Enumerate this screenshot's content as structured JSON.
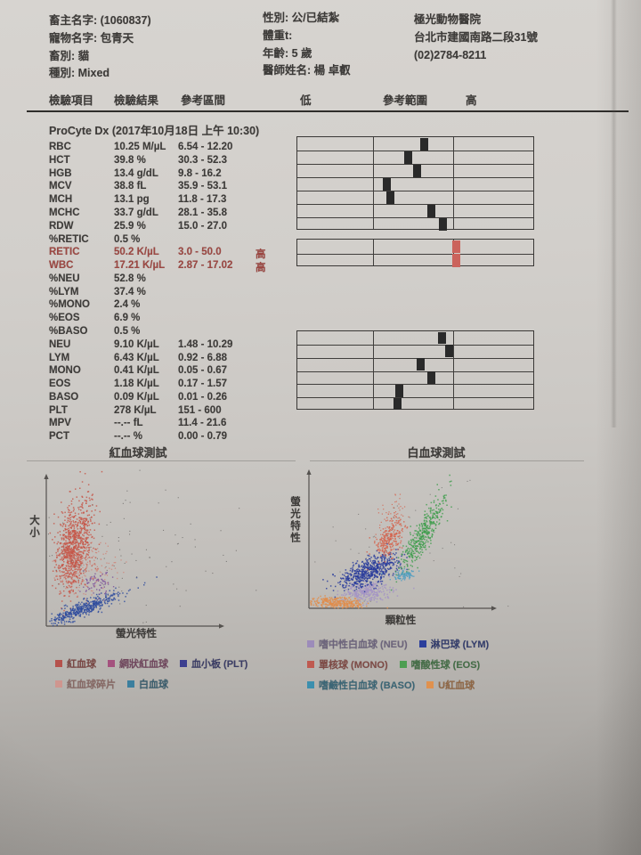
{
  "header": {
    "owner": [
      "畜主名字: (1060837)",
      "寵物名字: 包青天",
      "畜別: 貓",
      "種別: Mixed"
    ],
    "patient": [
      "性別: 公/已結紮",
      "體重t:",
      "年齡: 5 歲",
      "醫師姓名: 楊 卓叡"
    ],
    "clinic": [
      "極光動物醫院",
      "台北市建國南路二段31號",
      "(02)2784-8211"
    ]
  },
  "table": {
    "columns": [
      "檢驗項目",
      "檢驗結果",
      "參考區間",
      "低",
      "參考範圍",
      "高"
    ],
    "section_title": "ProCyte Dx (2017年10月18日 上午 10:30)",
    "alert_color": "#9c4742",
    "grid_dividers": [
      0.318,
      0.655
    ],
    "rows": [
      {
        "param": "RBC",
        "result": "10.25 M/µL",
        "range": "6.54 - 12.20",
        "flag": "",
        "grid": 0,
        "pos": 0.535,
        "marker_color": "#2a2a2a"
      },
      {
        "param": "HCT",
        "result": "39.8 %",
        "range": "30.3 - 52.3",
        "flag": "",
        "grid": 0,
        "pos": 0.465,
        "marker_color": "#2a2a2a"
      },
      {
        "param": "HGB",
        "result": "13.4 g/dL",
        "range": "9.8 - 16.2",
        "flag": "",
        "grid": 0,
        "pos": 0.505,
        "marker_color": "#2a2a2a"
      },
      {
        "param": "MCV",
        "result": "38.8 fL",
        "range": "35.9 - 53.1",
        "flag": "",
        "grid": 0,
        "pos": 0.375,
        "marker_color": "#2a2a2a"
      },
      {
        "param": "MCH",
        "result": "13.1 pg",
        "range": "11.8 - 17.3",
        "flag": "",
        "grid": 0,
        "pos": 0.392,
        "marker_color": "#2a2a2a"
      },
      {
        "param": "MCHC",
        "result": "33.7 g/dL",
        "range": "28.1 - 35.8",
        "flag": "",
        "grid": 0,
        "pos": 0.562,
        "marker_color": "#2a2a2a"
      },
      {
        "param": "RDW",
        "result": "25.9 %",
        "range": "15.0 - 27.0",
        "flag": "",
        "grid": 0,
        "pos": 0.614,
        "marker_color": "#2a2a2a"
      },
      {
        "param": "%RETIC",
        "result": "0.5 %",
        "range": "",
        "flag": ""
      },
      {
        "param": "RETIC",
        "result": "50.2 K/µL",
        "range": "3.0 - 50.0",
        "flag": "高",
        "alert": true,
        "grid": 1,
        "pos": 0.668,
        "marker_color": "#cb635c"
      },
      {
        "param": "WBC",
        "result": "17.21 K/µL",
        "range": "2.87 - 17.02",
        "flag": "高",
        "alert": true,
        "grid": 1,
        "pos": 0.668,
        "marker_color": "#cb635c"
      },
      {
        "param": "%NEU",
        "result": "52.8 %",
        "range": "",
        "flag": ""
      },
      {
        "param": "%LYM",
        "result": "37.4 %",
        "range": "",
        "flag": ""
      },
      {
        "param": "%MONO",
        "result": "2.4 %",
        "range": "",
        "flag": ""
      },
      {
        "param": "%EOS",
        "result": "6.9 %",
        "range": "",
        "flag": ""
      },
      {
        "param": "%BASO",
        "result": "0.5 %",
        "range": "",
        "flag": ""
      },
      {
        "param": "NEU",
        "result": "9.10 K/µL",
        "range": "1.48 - 10.29",
        "flag": "",
        "grid": 2,
        "pos": 0.61,
        "marker_color": "#2a2a2a"
      },
      {
        "param": "LYM",
        "result": "6.43 K/µL",
        "range": "0.92 - 6.88",
        "flag": "",
        "grid": 2,
        "pos": 0.638,
        "marker_color": "#2a2a2a"
      },
      {
        "param": "MONO",
        "result": "0.41 K/µL",
        "range": "0.05 - 0.67",
        "flag": "",
        "grid": 2,
        "pos": 0.518,
        "marker_color": "#2a2a2a"
      },
      {
        "param": "EOS",
        "result": "1.18 K/µL",
        "range": "0.17 - 1.57",
        "flag": "",
        "grid": 2,
        "pos": 0.562,
        "marker_color": "#2a2a2a"
      },
      {
        "param": "BASO",
        "result": "0.09 K/µL",
        "range": "0.01 - 0.26",
        "flag": "",
        "grid": 2,
        "pos": 0.43,
        "marker_color": "#2a2a2a"
      },
      {
        "param": "PLT",
        "result": "278 K/µL",
        "range": "151 - 600",
        "flag": "",
        "grid": 2,
        "pos": 0.42,
        "marker_color": "#2a2a2a"
      },
      {
        "param": "MPV",
        "result": "--.-- fL",
        "range": "11.4 - 21.6",
        "flag": ""
      },
      {
        "param": "PCT",
        "result": "--.-- %",
        "range": "0.00 - 0.79",
        "flag": ""
      }
    ]
  },
  "chart_data": [
    {
      "type": "scatter",
      "title": "紅血球測試",
      "xlabel": "螢光特性",
      "ylabel": "大小",
      "legend_rows": [
        [
          {
            "label": "紅血球",
            "color": "#b5524c"
          },
          {
            "label": "網狀紅血球",
            "color": "#a4527e"
          },
          {
            "label": "血小板 (PLT)",
            "color": "#3c3f8f"
          }
        ],
        [
          {
            "label": "紅血球碎片",
            "color": "#cf968f"
          },
          {
            "label": "白血球",
            "color": "#3c7f9e"
          }
        ]
      ],
      "clusters": [
        {
          "name": "rbc",
          "color": "#c65548",
          "n": 900,
          "cx": 0.155,
          "cy": 0.56,
          "sx": 0.045,
          "sy": 0.155,
          "rot": -8,
          "size": 1.5
        },
        {
          "name": "rbc-fragments",
          "color": "#cf8277",
          "n": 160,
          "cx": 0.21,
          "cy": 0.4,
          "sx": 0.08,
          "sy": 0.1,
          "rot": -25,
          "size": 1.3
        },
        {
          "name": "platelets",
          "color": "#2d4a9e",
          "n": 420,
          "cx": 0.21,
          "cy": 0.13,
          "sx": 0.115,
          "sy": 0.024,
          "rot": 27,
          "size": 1.5
        },
        {
          "name": "reticulocytes",
          "color": "#7a4f9a",
          "n": 70,
          "cx": 0.29,
          "cy": 0.3,
          "sx": 0.05,
          "sy": 0.04,
          "rot": 0,
          "size": 1.4
        },
        {
          "name": "wbc-sparse",
          "color": "#6f6d6a",
          "n": 90,
          "cx": 0.45,
          "cy": 0.5,
          "sx": 0.3,
          "sy": 0.28,
          "rot": 0,
          "size": 1.1
        }
      ]
    },
    {
      "type": "scatter",
      "title": "白血球測試",
      "xlabel": "顆粒性",
      "ylabel": "螢光特性",
      "legend_rows": [
        [
          {
            "label": "嗜中性白血球 (NEU)",
            "color": "#9c8cba"
          },
          {
            "label": "淋巴球 (LYM)",
            "color": "#2c3f9c"
          }
        ],
        [
          {
            "label": "單核球 (MONO)",
            "color": "#bf5a50"
          },
          {
            "label": "嗜酸性球 (EOS)",
            "color": "#4d9e52"
          }
        ],
        [
          {
            "label": "嗜鹼性白血球 (BASO)",
            "color": "#3c8fae"
          },
          {
            "label": "U紅血球",
            "color": "#e0914e"
          }
        ]
      ],
      "clusters": [
        {
          "name": "u-rbc",
          "color": "#e08c4a",
          "n": 300,
          "cx": 0.16,
          "cy": 0.05,
          "sx": 0.075,
          "sy": 0.022,
          "rot": -4,
          "size": 1.5
        },
        {
          "name": "neutrophils",
          "color": "#a393c6",
          "n": 280,
          "cx": 0.32,
          "cy": 0.14,
          "sx": 0.062,
          "sy": 0.04,
          "rot": 8,
          "size": 1.5
        },
        {
          "name": "lymphocytes",
          "color": "#26399b",
          "n": 560,
          "cx": 0.33,
          "cy": 0.3,
          "sx": 0.095,
          "sy": 0.045,
          "rot": 35,
          "size": 1.5
        },
        {
          "name": "monocytes",
          "color": "#d4644e",
          "n": 230,
          "cx": 0.445,
          "cy": 0.56,
          "sx": 0.032,
          "sy": 0.08,
          "rot": -14,
          "size": 1.5
        },
        {
          "name": "monocytes-sparse",
          "color": "#d4644e",
          "n": 60,
          "cx": 0.46,
          "cy": 0.72,
          "sx": 0.05,
          "sy": 0.11,
          "rot": -10,
          "size": 1.2
        },
        {
          "name": "eosinophils",
          "color": "#3f9e4d",
          "n": 400,
          "cx": 0.635,
          "cy": 0.6,
          "sx": 0.028,
          "sy": 0.155,
          "rot": -21,
          "size": 1.5
        },
        {
          "name": "basophils",
          "color": "#4a9cc2",
          "n": 80,
          "cx": 0.525,
          "cy": 0.27,
          "sx": 0.034,
          "sy": 0.024,
          "rot": 15,
          "size": 1.4
        },
        {
          "name": "scatter-noise",
          "color": "#7a7875",
          "n": 50,
          "cx": 0.5,
          "cy": 0.5,
          "sx": 0.3,
          "sy": 0.3,
          "rot": 0,
          "size": 1.1
        }
      ]
    }
  ]
}
